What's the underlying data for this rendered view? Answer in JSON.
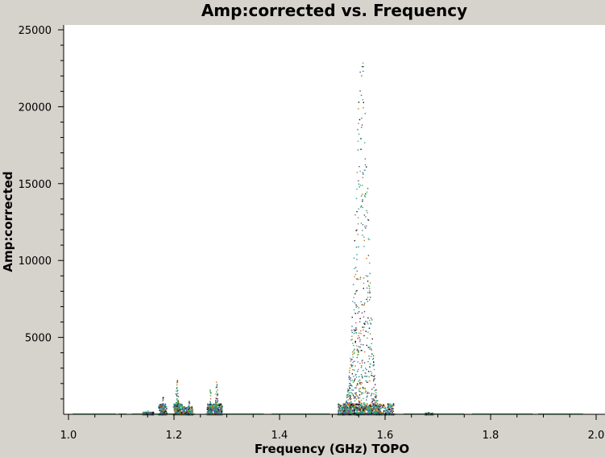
{
  "colors": {
    "background": "#d6d2cc",
    "plot_background": "#ffffff",
    "series_palette": [
      "#2fbf4f",
      "#1f8f6f",
      "#3a6fb0",
      "#d06a1a",
      "#b0802a",
      "#6b3a8a",
      "#111111",
      "#2aa0a0"
    ]
  },
  "chart_data": {
    "type": "scatter",
    "title": "Amp:corrected vs. Frequency",
    "xlabel": "Frequency (GHz) TOPO",
    "ylabel": "Amp:corrected",
    "xlim": [
      1.0,
      2.0
    ],
    "ylim": [
      0,
      25000
    ],
    "x_ticks": [
      1.0,
      1.2,
      1.4,
      1.6,
      1.8,
      2.0
    ],
    "x_tick_labels": [
      "1.0",
      "1.2",
      "1.4",
      "1.6",
      "1.8",
      "2.0"
    ],
    "y_ticks": [
      5000,
      10000,
      15000,
      20000,
      25000
    ],
    "y_tick_labels": [
      "5000",
      "10000",
      "15000",
      "20000",
      "25000"
    ],
    "grid": false,
    "baseline_segments": [
      {
        "x0": 1.008,
        "x1": 1.09,
        "y": 30
      },
      {
        "x0": 1.095,
        "x1": 1.11,
        "y": 30
      },
      {
        "x0": 1.12,
        "x1": 1.24,
        "y": 30
      },
      {
        "x0": 1.26,
        "x1": 1.37,
        "y": 30
      },
      {
        "x0": 1.385,
        "x1": 1.495,
        "y": 30
      },
      {
        "x0": 1.51,
        "x1": 1.62,
        "y": 30
      },
      {
        "x0": 1.635,
        "x1": 1.75,
        "y": 30
      },
      {
        "x0": 1.765,
        "x1": 1.88,
        "y": 30
      },
      {
        "x0": 1.89,
        "x1": 1.975,
        "y": 30
      }
    ],
    "clusters": [
      {
        "x0": 1.14,
        "x1": 1.16,
        "peak_x": 1.15,
        "max": 300
      },
      {
        "x0": 1.17,
        "x1": 1.185,
        "peak_x": 1.178,
        "max": 1400
      },
      {
        "x0": 1.198,
        "x1": 1.215,
        "peak_x": 1.205,
        "max": 2500
      },
      {
        "x0": 1.215,
        "x1": 1.235,
        "peak_x": 1.228,
        "max": 900
      },
      {
        "x0": 1.262,
        "x1": 1.275,
        "peak_x": 1.268,
        "max": 1700
      },
      {
        "x0": 1.275,
        "x1": 1.29,
        "peak_x": 1.28,
        "max": 2500
      },
      {
        "x0": 1.51,
        "x1": 1.615,
        "peak_x": 1.555,
        "max": 23800
      },
      {
        "x0": 1.675,
        "x1": 1.69,
        "peak_x": 1.682,
        "max": 200
      }
    ]
  }
}
